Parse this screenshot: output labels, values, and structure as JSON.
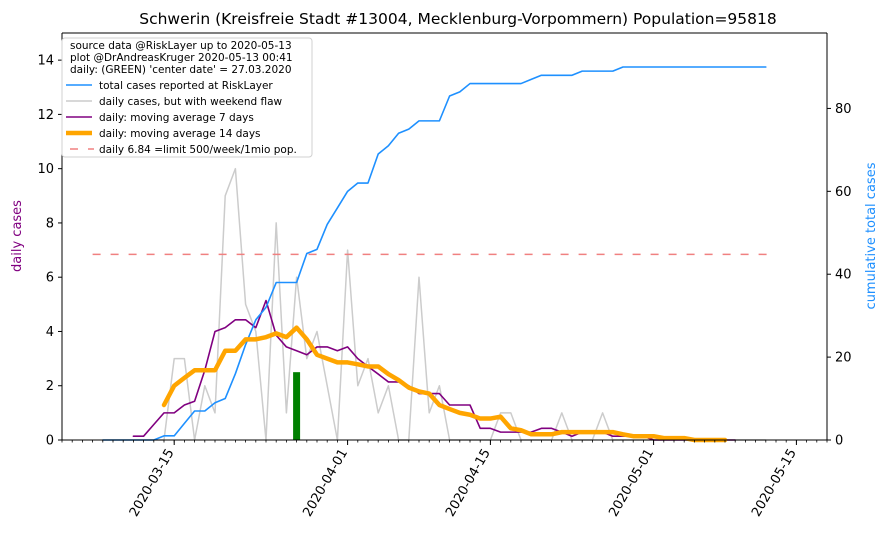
{
  "chart_data": {
    "type": "line",
    "title": "Schwerin (Kreisfreie Stadt #13004, Mecklenburg-Vorpommern) Population=95818",
    "ylabel_left": "daily cases",
    "ylabel_right": "cumulative total cases",
    "ylim_left": [
      0,
      15
    ],
    "ylim_right": [
      0,
      98.2
    ],
    "y_ticks_left": [
      0,
      2,
      4,
      6,
      8,
      10,
      12,
      14
    ],
    "y_ticks_right": [
      0,
      20,
      40,
      60,
      80
    ],
    "x_range": [
      "2020-03-04",
      "2020-05-18"
    ],
    "x_ticks": [
      "2020-03-15",
      "2020-04-01",
      "2020-04-15",
      "2020-05-01",
      "2020-05-15"
    ],
    "grid": false,
    "legend_position": "top-left",
    "legend_text": [
      "source data @RiskLayer up to 2020-05-13",
      "plot @DrAndreasKruger 2020-05-13 00:41",
      "daily: (GREEN) 'center date' = 27.03.2020"
    ],
    "colors": {
      "total": "#1e90ff",
      "daily": "#cccccc",
      "ma7": "#800080",
      "ma14": "#ffa500",
      "limit": "#f08080",
      "center": "#008000",
      "left_axis_label": "#800080",
      "right_axis_label": "#1e90ff"
    },
    "series": [
      {
        "name": "total cases reported at RiskLayer",
        "axis": "right",
        "x": [
          "2020-03-08",
          "2020-03-09",
          "2020-03-10",
          "2020-03-11",
          "2020-03-12",
          "2020-03-13",
          "2020-03-14",
          "2020-03-15",
          "2020-03-16",
          "2020-03-17",
          "2020-03-18",
          "2020-03-19",
          "2020-03-20",
          "2020-03-21",
          "2020-03-22",
          "2020-03-23",
          "2020-03-24",
          "2020-03-25",
          "2020-03-26",
          "2020-03-27",
          "2020-03-28",
          "2020-03-29",
          "2020-03-30",
          "2020-03-31",
          "2020-04-01",
          "2020-04-02",
          "2020-04-03",
          "2020-04-04",
          "2020-04-05",
          "2020-04-06",
          "2020-04-07",
          "2020-04-08",
          "2020-04-09",
          "2020-04-10",
          "2020-04-11",
          "2020-04-12",
          "2020-04-13",
          "2020-04-14",
          "2020-04-15",
          "2020-04-16",
          "2020-04-17",
          "2020-04-18",
          "2020-04-19",
          "2020-04-20",
          "2020-04-21",
          "2020-04-22",
          "2020-04-23",
          "2020-04-24",
          "2020-04-25",
          "2020-04-26",
          "2020-04-27",
          "2020-04-28",
          "2020-05-04",
          "2020-05-11",
          "2020-05-12"
        ],
        "values": [
          0,
          0,
          0,
          0,
          0,
          0,
          1,
          1,
          4,
          7,
          7,
          9,
          10,
          16,
          23,
          29,
          32,
          38,
          38,
          38,
          45,
          46,
          52,
          56,
          60,
          62,
          62,
          69,
          71,
          74,
          75,
          77,
          77,
          77,
          83,
          84,
          86,
          86,
          86,
          86,
          86,
          86,
          87,
          88,
          88,
          88,
          88,
          89,
          89,
          89,
          89,
          90,
          90,
          90,
          90
        ]
      },
      {
        "name": "daily cases, but with weekend flaw",
        "axis": "left",
        "x": [
          "2020-03-08",
          "2020-03-09",
          "2020-03-10",
          "2020-03-11",
          "2020-03-12",
          "2020-03-13",
          "2020-03-14",
          "2020-03-15",
          "2020-03-16",
          "2020-03-17",
          "2020-03-18",
          "2020-03-19",
          "2020-03-20",
          "2020-03-21",
          "2020-03-22",
          "2020-03-23",
          "2020-03-24",
          "2020-03-25",
          "2020-03-26",
          "2020-03-27",
          "2020-03-28",
          "2020-03-29",
          "2020-03-30",
          "2020-03-31",
          "2020-04-01",
          "2020-04-02",
          "2020-04-03",
          "2020-04-04",
          "2020-04-05",
          "2020-04-06",
          "2020-04-07",
          "2020-04-08",
          "2020-04-09",
          "2020-04-10",
          "2020-04-11",
          "2020-04-12",
          "2020-04-13",
          "2020-04-14",
          "2020-04-15",
          "2020-04-16",
          "2020-04-17",
          "2020-04-18",
          "2020-04-19",
          "2020-04-20",
          "2020-04-21",
          "2020-04-22",
          "2020-04-23",
          "2020-04-24",
          "2020-04-25",
          "2020-04-26",
          "2020-04-27",
          "2020-04-28",
          "2020-04-29",
          "2020-04-30",
          "2020-05-01",
          "2020-05-02",
          "2020-05-03",
          "2020-05-04",
          "2020-05-05",
          "2020-05-06",
          "2020-05-07",
          "2020-05-08",
          "2020-05-09",
          "2020-05-10",
          "2020-05-11",
          "2020-05-12"
        ],
        "values": [
          0,
          0,
          0,
          0,
          0,
          0,
          0,
          3,
          3,
          0,
          2,
          1,
          9,
          10,
          5,
          4,
          0,
          8,
          1,
          6,
          3,
          4,
          2,
          0,
          7,
          2,
          3,
          1,
          2,
          0,
          0,
          6,
          1,
          2,
          0,
          0,
          0,
          0,
          0,
          1,
          1,
          0,
          0,
          0,
          0,
          1,
          0,
          0,
          0,
          1,
          0,
          0,
          0,
          0,
          0,
          0,
          0,
          0,
          0,
          0,
          0,
          0,
          0,
          0,
          0,
          0
        ]
      },
      {
        "name": "daily: moving average 7 days",
        "axis": "left",
        "x": [
          "2020-03-11",
          "2020-03-12",
          "2020-03-13",
          "2020-03-14",
          "2020-03-15",
          "2020-03-16",
          "2020-03-17",
          "2020-03-18",
          "2020-03-19",
          "2020-03-20",
          "2020-03-21",
          "2020-03-22",
          "2020-03-23",
          "2020-03-24",
          "2020-03-25",
          "2020-03-26",
          "2020-03-27",
          "2020-03-28",
          "2020-03-29",
          "2020-03-30",
          "2020-03-31",
          "2020-04-01",
          "2020-04-02",
          "2020-04-03",
          "2020-04-04",
          "2020-04-05",
          "2020-04-06",
          "2020-04-07",
          "2020-04-08",
          "2020-04-09",
          "2020-04-10",
          "2020-04-11",
          "2020-04-12",
          "2020-04-13",
          "2020-04-14",
          "2020-04-15",
          "2020-04-16",
          "2020-04-17",
          "2020-04-18",
          "2020-04-19",
          "2020-04-20",
          "2020-04-21",
          "2020-04-22",
          "2020-04-23",
          "2020-04-24",
          "2020-04-25",
          "2020-04-26",
          "2020-04-27",
          "2020-04-28",
          "2020-04-29",
          "2020-04-30",
          "2020-05-01",
          "2020-05-02",
          "2020-05-03",
          "2020-05-04",
          "2020-05-05",
          "2020-05-06",
          "2020-05-07",
          "2020-05-08",
          "2020-05-09"
        ],
        "values": [
          0.14,
          0.14,
          0.57,
          1.0,
          1.0,
          1.29,
          1.43,
          2.57,
          4.0,
          4.14,
          4.43,
          4.43,
          4.14,
          5.14,
          3.86,
          3.43,
          3.29,
          3.14,
          3.43,
          3.43,
          3.29,
          3.43,
          3.0,
          2.71,
          2.43,
          2.14,
          2.14,
          2.0,
          1.71,
          1.71,
          1.71,
          1.29,
          1.29,
          1.29,
          0.43,
          0.43,
          0.29,
          0.29,
          0.29,
          0.29,
          0.43,
          0.43,
          0.29,
          0.14,
          0.29,
          0.29,
          0.29,
          0.14,
          0.14,
          0.14,
          0.14,
          0.0,
          0.0,
          0.0,
          0.0,
          0.0,
          0.0,
          0.0,
          0.0,
          0.0
        ]
      },
      {
        "name": "daily: moving average 14 days",
        "axis": "left",
        "x": [
          "2020-03-14",
          "2020-03-15",
          "2020-03-16",
          "2020-03-17",
          "2020-03-18",
          "2020-03-19",
          "2020-03-20",
          "2020-03-21",
          "2020-03-22",
          "2020-03-23",
          "2020-03-24",
          "2020-03-25",
          "2020-03-26",
          "2020-03-27",
          "2020-03-28",
          "2020-03-29",
          "2020-03-30",
          "2020-03-31",
          "2020-04-01",
          "2020-04-02",
          "2020-04-03",
          "2020-04-04",
          "2020-04-05",
          "2020-04-06",
          "2020-04-07",
          "2020-04-08",
          "2020-04-09",
          "2020-04-10",
          "2020-04-11",
          "2020-04-12",
          "2020-04-13",
          "2020-04-14",
          "2020-04-15",
          "2020-04-16",
          "2020-04-17",
          "2020-04-18",
          "2020-04-19",
          "2020-04-20",
          "2020-04-21",
          "2020-04-22",
          "2020-04-23",
          "2020-04-24",
          "2020-04-25",
          "2020-04-26",
          "2020-04-27",
          "2020-04-28",
          "2020-04-29",
          "2020-04-30",
          "2020-05-01",
          "2020-05-02",
          "2020-05-03",
          "2020-05-04",
          "2020-05-05",
          "2020-05-06",
          "2020-05-07",
          "2020-05-08"
        ],
        "values": [
          1.29,
          2.0,
          2.29,
          2.57,
          2.57,
          2.57,
          3.29,
          3.29,
          3.71,
          3.71,
          3.79,
          3.93,
          3.79,
          4.14,
          3.71,
          3.14,
          3.0,
          2.86,
          2.86,
          2.79,
          2.71,
          2.71,
          2.43,
          2.21,
          1.93,
          1.79,
          1.71,
          1.29,
          1.14,
          1.0,
          0.93,
          0.79,
          0.79,
          0.86,
          0.43,
          0.36,
          0.21,
          0.21,
          0.21,
          0.29,
          0.29,
          0.29,
          0.29,
          0.29,
          0.29,
          0.21,
          0.14,
          0.14,
          0.14,
          0.07,
          0.07,
          0.07,
          0.0,
          0.0,
          0.0,
          0.0
        ]
      },
      {
        "name": "daily 6.84 =limit 500/week/1mio pop.",
        "axis": "left",
        "x": [
          "2020-03-07",
          "2020-05-13"
        ],
        "values": [
          6.84,
          6.84
        ]
      }
    ],
    "center_bar": {
      "x": "2020-03-27",
      "value": 2.5
    }
  }
}
